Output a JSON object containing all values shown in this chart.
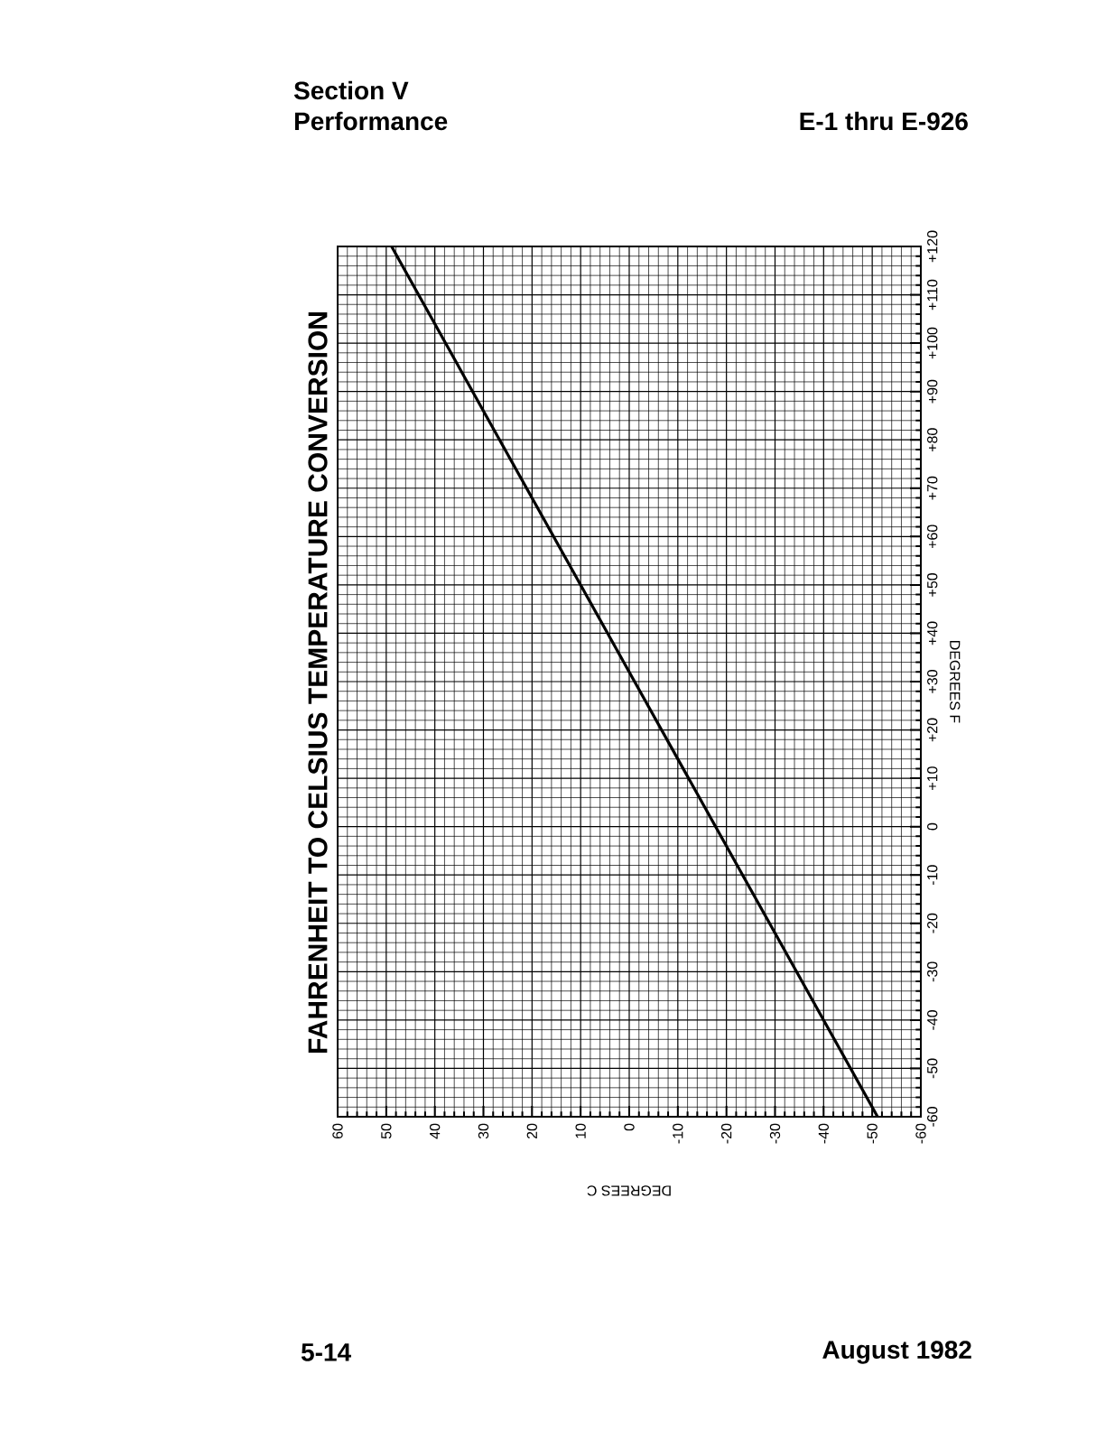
{
  "chart_data": {
    "type": "line",
    "title": "FAHRENHEIT TO CELSIUS TEMPERATURE CONVERSION",
    "xlabel": "DEGREES C",
    "ylabel": "DEGREES F",
    "x": [
      -51.1,
      48.9
    ],
    "series": [
      {
        "color": "#000000",
        "values": [
          -60,
          120
        ]
      }
    ],
    "xlim": [
      60,
      -60
    ],
    "xticks": [
      60,
      50,
      40,
      30,
      20,
      10,
      0,
      -10,
      -20,
      -30,
      -40,
      -50,
      -60
    ],
    "ylim": [
      -60,
      120
    ],
    "yticks": [
      -60,
      -50,
      -40,
      -30,
      -20,
      -10,
      0,
      {
        "value": 10,
        "label": "+10"
      },
      {
        "value": 20,
        "label": "+20"
      },
      {
        "value": 30,
        "label": "+30"
      },
      {
        "value": 40,
        "label": "+40"
      },
      {
        "value": 50,
        "label": "+50"
      },
      {
        "value": 60,
        "label": "+60"
      },
      {
        "value": 70,
        "label": "+70"
      },
      {
        "value": 80,
        "label": "+80"
      },
      {
        "value": 90,
        "label": "+90"
      },
      {
        "value": 100,
        "label": "+100"
      },
      {
        "value": 110,
        "label": "+110"
      },
      {
        "value": 120,
        "label": "+120"
      }
    ],
    "grid": true,
    "marker": "none",
    "line_style": "solid",
    "annotations": [
      "Section V",
      "Performance",
      "E-1 thru E-926",
      "5-14",
      "August 1982"
    ]
  }
}
